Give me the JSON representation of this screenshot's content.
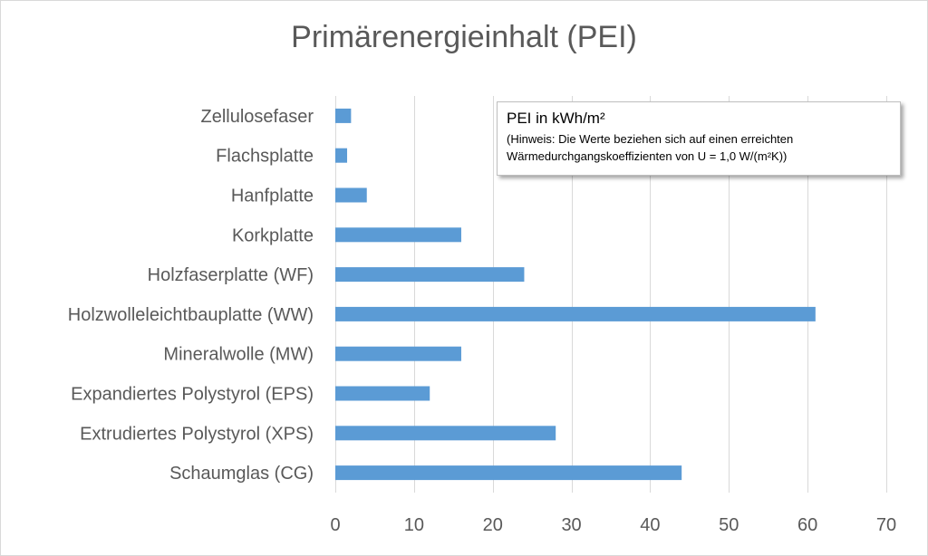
{
  "chart_data": {
    "type": "bar",
    "orientation": "horizontal",
    "title": "Primärenergieinhalt (PEI)",
    "categories": [
      "Zellulosefaser",
      "Flachsplatte",
      "Hanfplatte",
      "Korkplatte",
      "Holzfaserplatte (WF)",
      "Holzwolleleichtbauplatte (WW)",
      "Mineralwolle (MW)",
      "Expandiertes Polystyrol (EPS)",
      "Extrudiertes Polystyrol (XPS)",
      "Schaumglas (CG)"
    ],
    "values": [
      2,
      1.5,
      4,
      16,
      24,
      61,
      16,
      12,
      28,
      44
    ],
    "xlim": [
      0,
      70
    ],
    "xticks": [
      "0",
      "10",
      "20",
      "30",
      "40",
      "50",
      "60",
      "70"
    ],
    "grid": true,
    "bar_color": "#5b9bd5",
    "annotation": {
      "title": "PEI in kWh/m²",
      "text_lines": [
        "(Hinweis: Die Werte beziehen sich auf einen erreichten",
        "Wärmedurchgangskoeffizienten von U = 1,0 W/(m²K))"
      ]
    }
  }
}
